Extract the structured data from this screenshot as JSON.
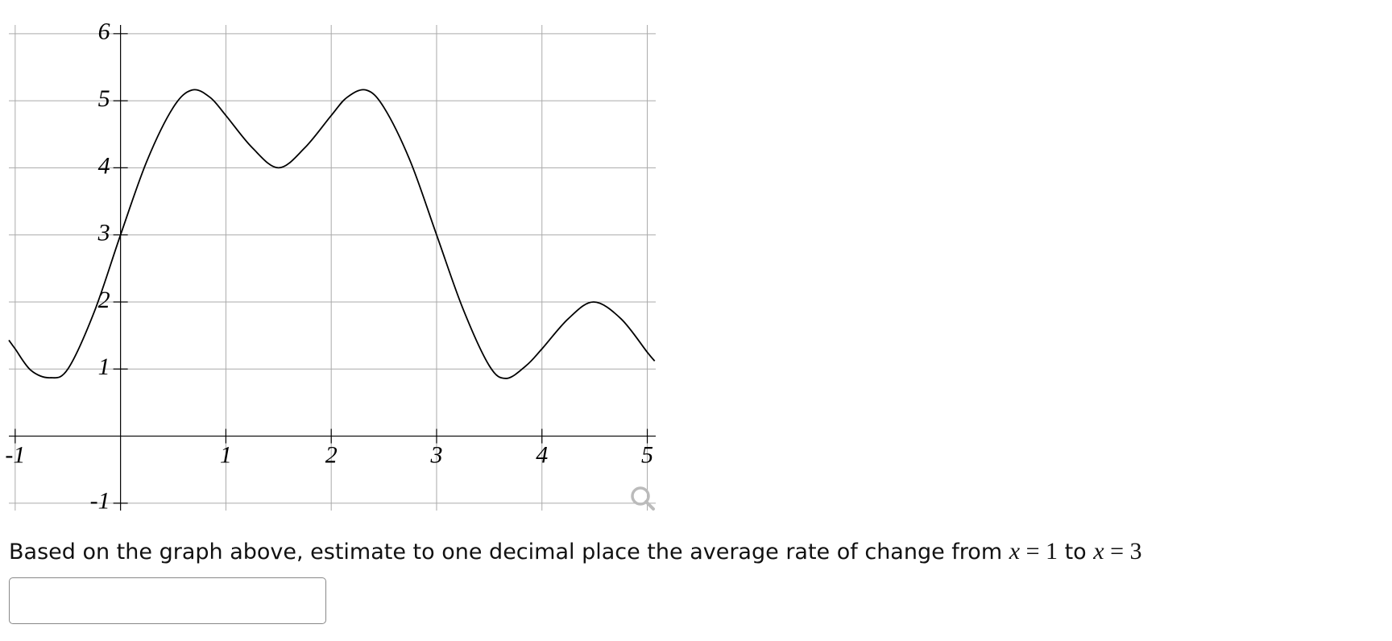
{
  "chart_data": {
    "type": "line",
    "x": [
      -1.06,
      -1.0,
      -0.85,
      -0.67,
      -0.5,
      -0.25,
      0,
      0.25,
      0.5,
      0.68,
      0.85,
      1.0,
      1.25,
      1.5,
      1.75,
      2.0,
      2.15,
      2.33,
      2.5,
      2.75,
      3.0,
      3.25,
      3.5,
      3.66,
      3.85,
      4.0,
      4.25,
      4.49,
      4.75,
      5.0,
      5.07
    ],
    "values": [
      1.43,
      1.3,
      0.98,
      0.87,
      1.0,
      1.85,
      3.0,
      4.1,
      4.9,
      5.16,
      5.05,
      4.78,
      4.3,
      4.0,
      4.3,
      4.78,
      5.05,
      5.16,
      4.9,
      4.1,
      3.0,
      1.9,
      1.05,
      0.86,
      1.05,
      1.3,
      1.75,
      2.0,
      1.75,
      1.25,
      1.12
    ],
    "color": "#000000",
    "xlim": [
      -1.06,
      5.08
    ],
    "ylim": [
      -1.11,
      6.13
    ],
    "xticks": [
      -1,
      1,
      2,
      3,
      4,
      5
    ],
    "yticks": [
      -1,
      1,
      2,
      3,
      4,
      5,
      6
    ],
    "grid": true
  },
  "question": {
    "lead": "Based on the graph above, estimate to one decimal place the average rate of change from",
    "from_var": "x",
    "from_eq": "=",
    "from_val": "1",
    "joiner": "to",
    "to_var": "x",
    "to_eq": "=",
    "to_val": "3"
  }
}
